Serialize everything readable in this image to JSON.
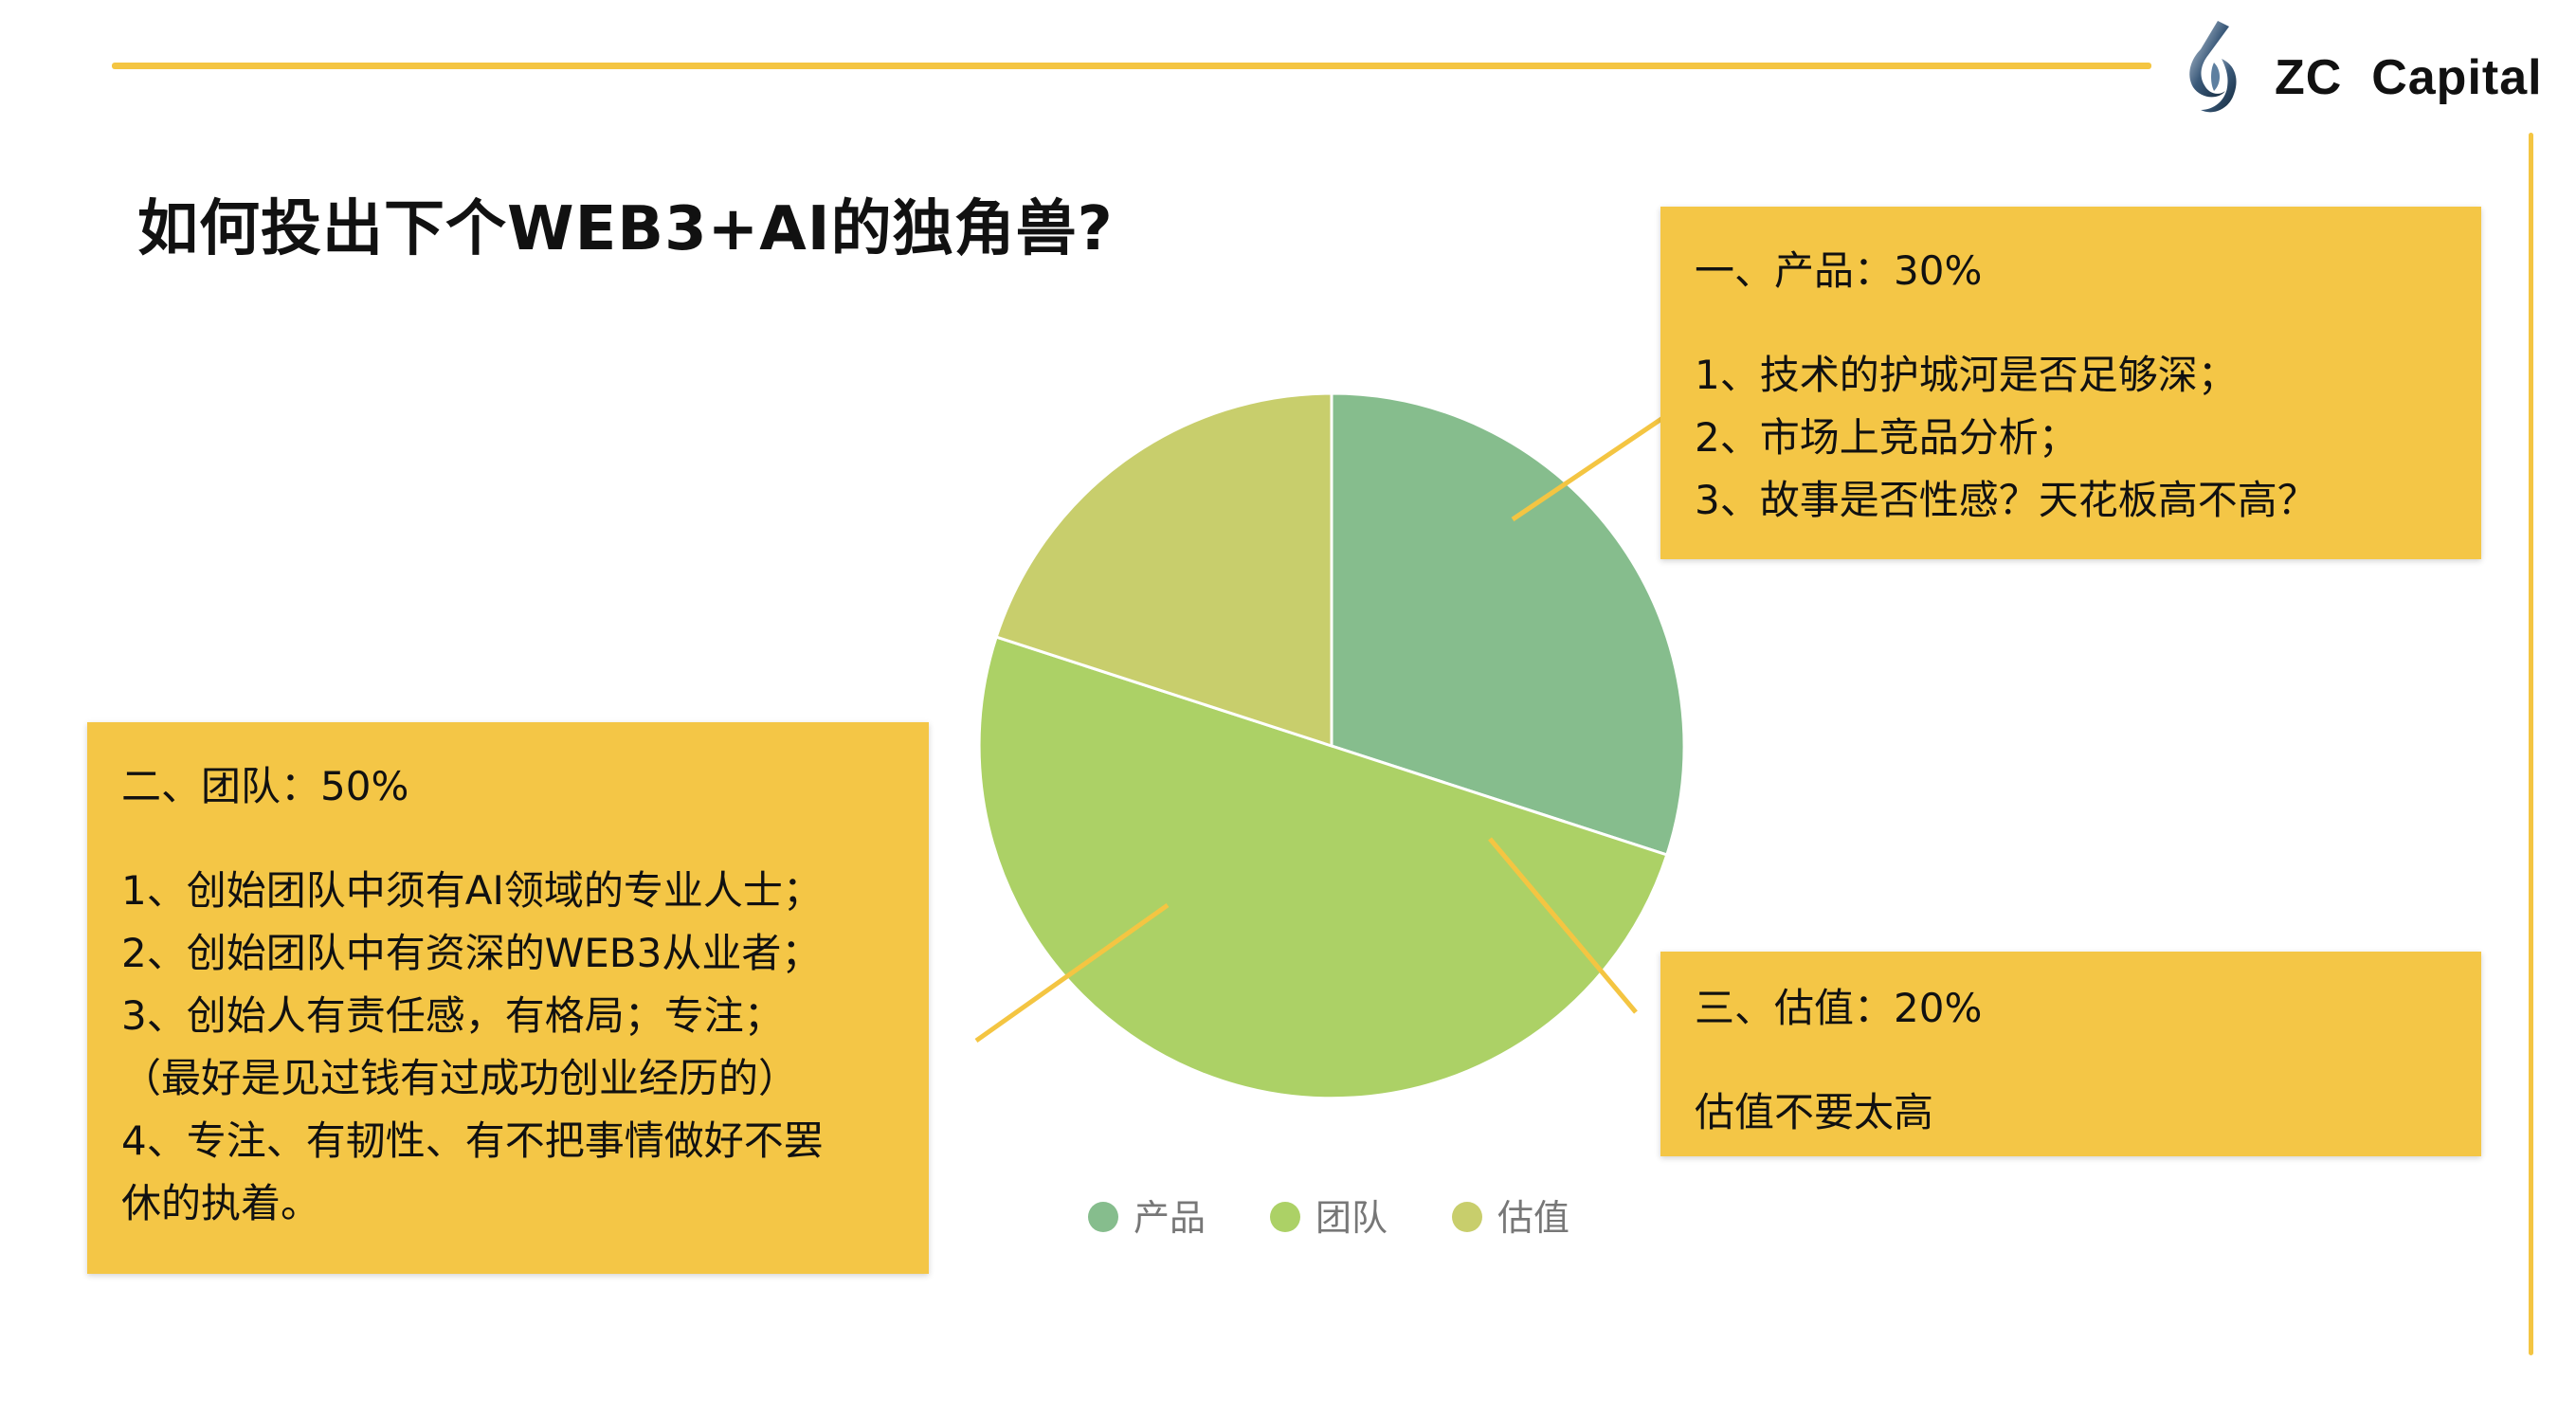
{
  "header": {
    "brand": "ZC  Capital",
    "title": "如何投出下个WEB3+AI的独角兽?"
  },
  "cards": {
    "product": {
      "heading": "一、产品：30%",
      "lines": [
        "1、技术的护城河是否足够深；",
        "2、市场上竞品分析；",
        "3、故事是否性感？天花板高不高？"
      ]
    },
    "team": {
      "heading": "二、团队：50%",
      "lines": [
        "1、创始团队中须有AI领域的专业人士；",
        "2、创始团队中有资深的WEB3从业者；",
        "3、创始人有责任感，有格局；专注；",
        "（最好是见过钱有过成功创业经历的）",
        "4、专注、有韧性、有不把事情做好不罢",
        "休的执着。"
      ]
    },
    "valuation": {
      "heading": "三、估值：20%",
      "lines": [
        "估值不要太高"
      ]
    }
  },
  "colors": {
    "accent": "#f4c542",
    "card": "#f4c646",
    "product": "#86bd8d",
    "team": "#acd166",
    "valuation": "#c8ce6c"
  },
  "chart_data": {
    "type": "pie",
    "categories": [
      "产品",
      "团队",
      "估值"
    ],
    "values": [
      30,
      50,
      20
    ],
    "colors": [
      "#86bd8d",
      "#acd166",
      "#c8ce6c"
    ],
    "legend": "bottom"
  }
}
